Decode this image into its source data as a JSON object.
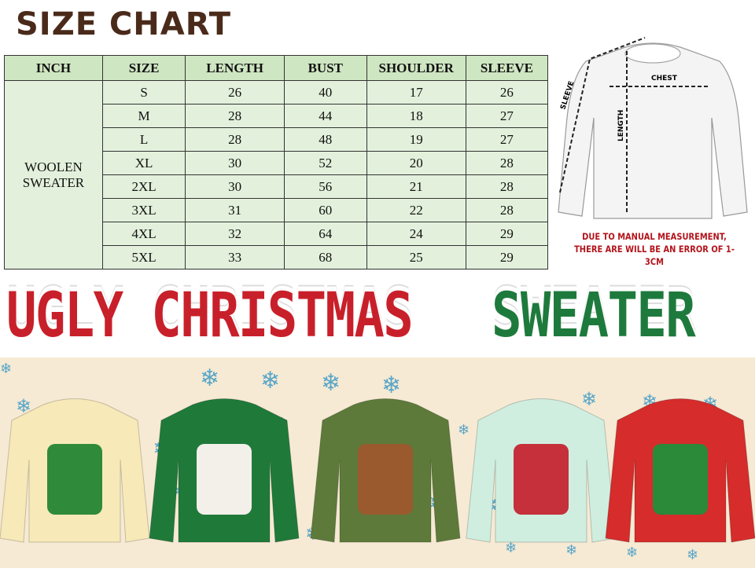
{
  "title": "SIZE CHART",
  "table": {
    "headers": [
      "INCH",
      "SIZE",
      "LENGTH",
      "BUST",
      "SHOULDER",
      "SLEEVE"
    ],
    "category": [
      "WOOLEN",
      "SWEATER"
    ],
    "rows": [
      [
        "S",
        "26",
        "40",
        "17",
        "26"
      ],
      [
        "M",
        "28",
        "44",
        "18",
        "27"
      ],
      [
        "L",
        "28",
        "48",
        "19",
        "27"
      ],
      [
        "XL",
        "30",
        "52",
        "20",
        "28"
      ],
      [
        "2XL",
        "30",
        "56",
        "21",
        "28"
      ],
      [
        "3XL",
        "31",
        "60",
        "22",
        "28"
      ],
      [
        "4XL",
        "32",
        "64",
        "24",
        "29"
      ],
      [
        "5XL",
        "33",
        "68",
        "25",
        "29"
      ]
    ]
  },
  "diagram": {
    "chest": "CHEST",
    "length": "LENGTH",
    "sleeve": "SLEEVE"
  },
  "note": [
    "DUE TO MANUAL MEASUREMENT,",
    "THERE ARE WILL BE AN ERROR OF 1-3CM"
  ],
  "banner": {
    "red": "UGLY CHRISTMAS",
    "green": "SWEATER"
  },
  "colors": {
    "header_bg": "#cfe6c2",
    "cell_bg": "#e3f1dc",
    "note": "#b3131b",
    "banner_red": "#c8202a",
    "banner_green": "#1e7a3c",
    "bottom_bg": "#f6ead4"
  },
  "sweaters": [
    "yellow-tree-sweater",
    "green-bear-sweater",
    "olive-reindeer-sweater",
    "mint-fairisle-sweater",
    "red-elf-sweater"
  ]
}
